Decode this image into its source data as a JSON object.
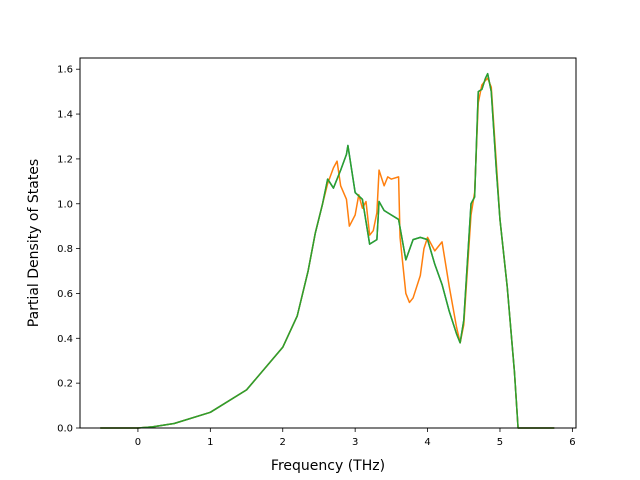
{
  "chart_data": {
    "type": "line",
    "title": "",
    "xlabel": "Frequency (THz)",
    "ylabel": "Partial Density of States",
    "xlim": [
      -0.8,
      6.05
    ],
    "ylim": [
      0.0,
      1.65
    ],
    "xticks": [
      0,
      1,
      2,
      3,
      4,
      5,
      6
    ],
    "yticks": [
      0.0,
      0.2,
      0.4,
      0.6,
      0.8,
      1.0,
      1.2,
      1.4,
      1.6
    ],
    "xtick_labels": [
      "0",
      "1",
      "2",
      "3",
      "4",
      "5",
      "6"
    ],
    "ytick_labels": [
      "0.0",
      "0.2",
      "0.4",
      "0.6",
      "0.8",
      "1.0",
      "1.2",
      "1.4",
      "1.6"
    ],
    "grid": false,
    "legend": "none",
    "series": [
      {
        "color": "#1f77b4",
        "x": [
          -0.52,
          0.0,
          0.2,
          0.5,
          1.0,
          1.5,
          2.0,
          2.2,
          2.35,
          2.45,
          2.55,
          2.62,
          2.7,
          2.8,
          2.88,
          2.9,
          3.0,
          3.1,
          3.2,
          3.3,
          3.33,
          3.4,
          3.5,
          3.6,
          3.7,
          3.8,
          3.9,
          4.0,
          4.1,
          4.2,
          4.3,
          4.4,
          4.45,
          4.5,
          4.6,
          4.65,
          4.7,
          4.75,
          4.8,
          4.83,
          4.88,
          4.95,
          5.0,
          5.1,
          5.2,
          5.25,
          5.3,
          5.75
        ],
        "y": [
          0.0,
          0.0,
          0.005,
          0.02,
          0.07,
          0.17,
          0.36,
          0.5,
          0.7,
          0.87,
          1.0,
          1.11,
          1.07,
          1.15,
          1.22,
          1.26,
          1.05,
          1.02,
          0.82,
          0.84,
          1.01,
          0.97,
          0.95,
          0.93,
          0.75,
          0.84,
          0.85,
          0.84,
          0.73,
          0.64,
          0.52,
          0.42,
          0.38,
          0.48,
          1.0,
          1.03,
          1.5,
          1.51,
          1.56,
          1.58,
          1.5,
          1.15,
          0.93,
          0.63,
          0.25,
          0.0,
          0.0,
          0.0
        ]
      },
      {
        "color": "#ff7f0e",
        "x": [
          -0.52,
          0.0,
          0.2,
          0.5,
          1.0,
          1.5,
          2.0,
          2.2,
          2.35,
          2.45,
          2.55,
          2.62,
          2.7,
          2.75,
          2.8,
          2.88,
          2.92,
          3.0,
          3.05,
          3.1,
          3.15,
          3.2,
          3.25,
          3.3,
          3.33,
          3.4,
          3.45,
          3.5,
          3.6,
          3.62,
          3.7,
          3.75,
          3.8,
          3.9,
          3.95,
          4.0,
          4.1,
          4.2,
          4.3,
          4.4,
          4.45,
          4.5,
          4.6,
          4.65,
          4.7,
          4.75,
          4.8,
          4.83,
          4.88,
          4.95,
          5.0,
          5.1,
          5.2,
          5.25,
          5.3,
          5.75
        ],
        "y": [
          0.0,
          0.0,
          0.005,
          0.02,
          0.07,
          0.17,
          0.36,
          0.5,
          0.7,
          0.87,
          1.0,
          1.09,
          1.16,
          1.19,
          1.08,
          1.02,
          0.9,
          0.95,
          1.04,
          0.98,
          1.01,
          0.86,
          0.88,
          0.96,
          1.15,
          1.08,
          1.12,
          1.11,
          1.12,
          0.85,
          0.6,
          0.56,
          0.58,
          0.68,
          0.8,
          0.85,
          0.79,
          0.83,
          0.63,
          0.45,
          0.38,
          0.46,
          0.95,
          1.05,
          1.45,
          1.53,
          1.55,
          1.56,
          1.52,
          1.18,
          0.93,
          0.63,
          0.25,
          0.0,
          0.0,
          0.0
        ]
      },
      {
        "color": "#2ca02c",
        "x": [
          -0.52,
          0.0,
          0.2,
          0.5,
          1.0,
          1.5,
          2.0,
          2.2,
          2.35,
          2.45,
          2.55,
          2.62,
          2.7,
          2.8,
          2.88,
          2.9,
          3.0,
          3.1,
          3.2,
          3.3,
          3.33,
          3.4,
          3.5,
          3.6,
          3.7,
          3.8,
          3.9,
          4.0,
          4.1,
          4.2,
          4.3,
          4.4,
          4.45,
          4.5,
          4.6,
          4.65,
          4.7,
          4.75,
          4.8,
          4.83,
          4.88,
          4.95,
          5.0,
          5.1,
          5.2,
          5.25,
          5.3,
          5.75
        ],
        "y": [
          0.0,
          0.0,
          0.005,
          0.02,
          0.07,
          0.17,
          0.36,
          0.5,
          0.7,
          0.87,
          1.0,
          1.11,
          1.07,
          1.15,
          1.22,
          1.26,
          1.05,
          1.02,
          0.82,
          0.84,
          1.01,
          0.97,
          0.95,
          0.93,
          0.75,
          0.84,
          0.85,
          0.84,
          0.73,
          0.64,
          0.52,
          0.42,
          0.38,
          0.48,
          1.0,
          1.03,
          1.5,
          1.51,
          1.56,
          1.58,
          1.5,
          1.15,
          0.93,
          0.63,
          0.25,
          0.0,
          0.0,
          0.0
        ]
      }
    ]
  }
}
